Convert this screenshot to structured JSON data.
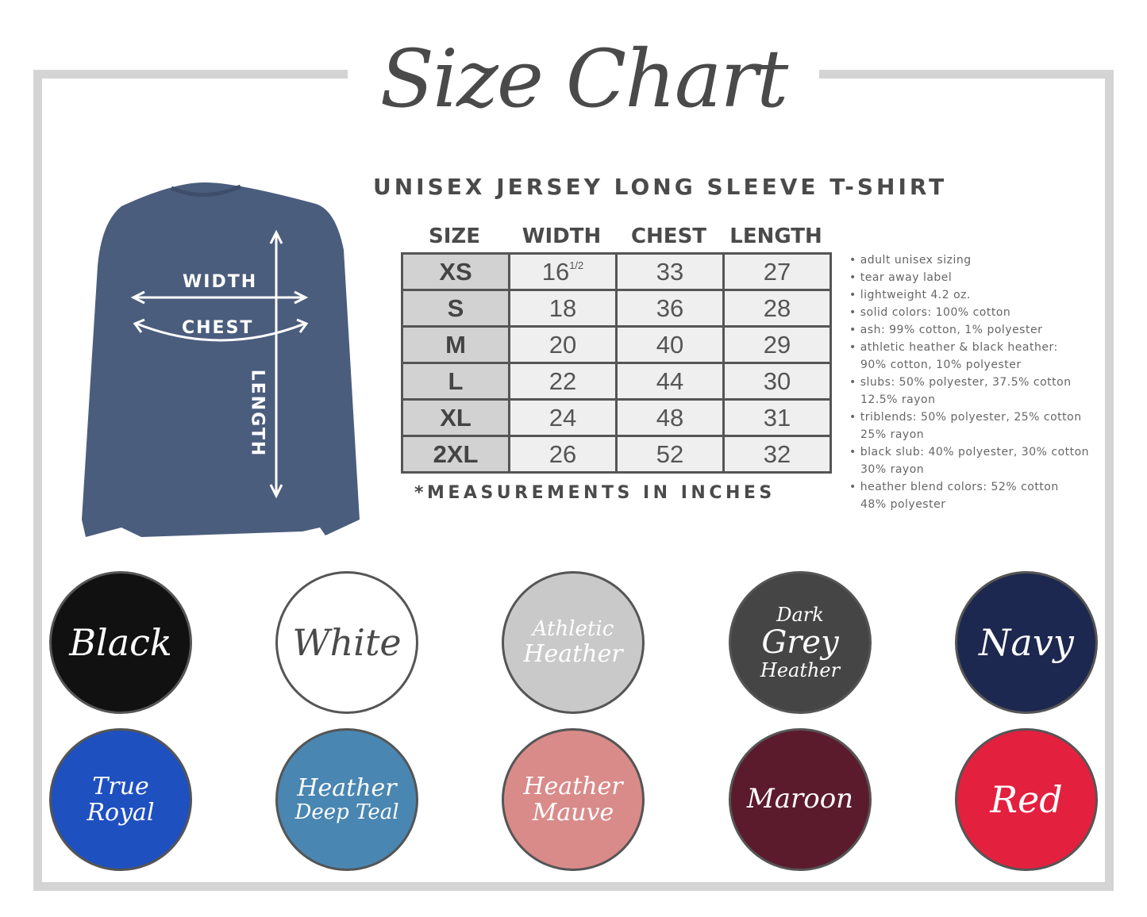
{
  "title": "Size Chart",
  "subtitle": "UNISEX JERSEY LONG SLEEVE T-SHIRT",
  "shirt": {
    "color": "#4b5d7d",
    "labels": {
      "width": "WIDTH",
      "chest": "CHEST",
      "length": "LENGTH"
    }
  },
  "table": {
    "headers": [
      "SIZE",
      "WIDTH",
      "CHEST",
      "LENGTH"
    ],
    "rows": [
      {
        "size": "XS",
        "width": "16",
        "width_frac": "1/2",
        "chest": "33",
        "length": "27"
      },
      {
        "size": "S",
        "width": "18",
        "chest": "36",
        "length": "28"
      },
      {
        "size": "M",
        "width": "20",
        "chest": "40",
        "length": "29"
      },
      {
        "size": "L",
        "width": "22",
        "chest": "44",
        "length": "30"
      },
      {
        "size": "XL",
        "width": "24",
        "chest": "48",
        "length": "31"
      },
      {
        "size": "2XL",
        "width": "26",
        "chest": "52",
        "length": "32"
      }
    ]
  },
  "note": "*MEASUREMENTS IN INCHES",
  "bullets": [
    [
      "adult unisex sizing"
    ],
    [
      "tear away label"
    ],
    [
      "lightweight 4.2 oz."
    ],
    [
      "solid colors: 100% cotton"
    ],
    [
      "ash: 99% cotton, 1% polyester"
    ],
    [
      "athletic heather & black heather:",
      "90% cotton, 10% polyester"
    ],
    [
      "slubs: 50% polyester, 37.5% cotton",
      "12.5% rayon"
    ],
    [
      "triblends: 50% polyester, 25% cotton",
      "25% rayon"
    ],
    [
      "black slub: 40% polyester, 30% cotton",
      "30% rayon"
    ],
    [
      "heather blend colors: 52% cotton",
      "48% polyester"
    ]
  ],
  "colors": [
    {
      "lines": [
        "Black"
      ],
      "bg": "#111111",
      "fg": "#ffffff"
    },
    {
      "lines": [
        "White"
      ],
      "bg": "#ffffff",
      "fg": "#4a4a4a"
    },
    {
      "lines": [
        "Athletic",
        "Heather"
      ],
      "bg": "#c9c9c9",
      "fg": "#ffffff"
    },
    {
      "lines": [
        "Dark",
        "Grey",
        "Heather"
      ],
      "bg": "#454545",
      "fg": "#ffffff"
    },
    {
      "lines": [
        "Navy"
      ],
      "bg": "#1d2850",
      "fg": "#ffffff"
    },
    {
      "lines": [
        "True",
        "Royal"
      ],
      "bg": "#1f50c0",
      "fg": "#ffffff"
    },
    {
      "lines": [
        "Heather",
        "Deep Teal"
      ],
      "bg": "#4a86b2",
      "fg": "#ffffff"
    },
    {
      "lines": [
        "Heather",
        "Mauve"
      ],
      "bg": "#d98b8a",
      "fg": "#ffffff"
    },
    {
      "lines": [
        "Maroon"
      ],
      "bg": "#5c1a2d",
      "fg": "#ffffff"
    },
    {
      "lines": [
        "Red"
      ],
      "bg": "#e4203f",
      "fg": "#ffffff"
    }
  ]
}
